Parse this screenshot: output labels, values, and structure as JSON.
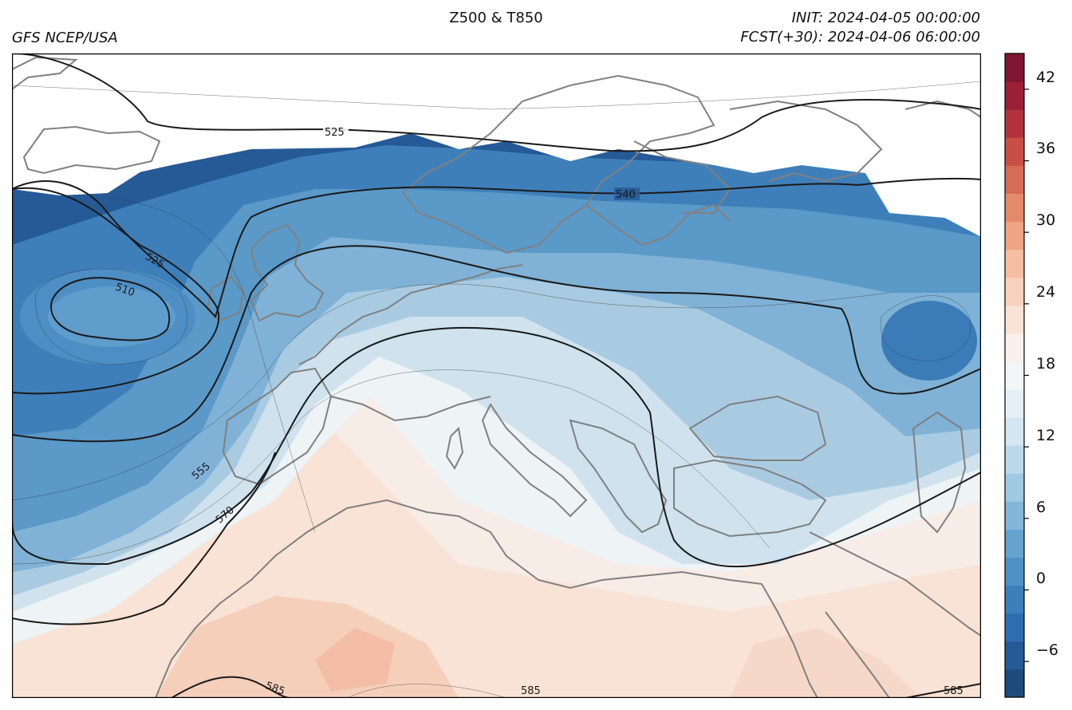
{
  "header": {
    "title": "Z500 & T850",
    "source": "GFS NCEP/USA",
    "init": "INIT: 2024-04-05 00:00:00",
    "forecast": "FCST(+30): 2024-04-06 06:00:00"
  },
  "map": {
    "type": "contourf+contour",
    "variable_filled": "T850",
    "variable_lines": "Z500",
    "region": "North Atlantic, Europe, Mediterranean, North Africa",
    "contour_labels": [
      "525",
      "540",
      "525",
      "510",
      "555",
      "570",
      "585",
      "585",
      "585"
    ],
    "colors": {
      "land_outline": "#808080",
      "contour_line": "#1a1a1a",
      "cold": "#2166ac",
      "warm": "#f4a582"
    }
  },
  "colorbar": {
    "vmin": -9,
    "vmax": 45,
    "step": 3,
    "tick_labels": [
      "42",
      "36",
      "30",
      "24",
      "18",
      "12",
      "6",
      "0",
      "−6"
    ],
    "colors": [
      "#1f4a7c",
      "#255a96",
      "#2e6db0",
      "#3b7fbb",
      "#4d91c6",
      "#65a3cf",
      "#83b7d9",
      "#a1c9e3",
      "#bcd9ea",
      "#d4e6f1",
      "#e6eff5",
      "#f3f5f7",
      "#f9efeb",
      "#fae2d6",
      "#f9d1bc",
      "#f6bea2",
      "#efa584",
      "#e58a6a",
      "#d76b55",
      "#c74f46",
      "#b2313c",
      "#9b1f37",
      "#7f1530"
    ]
  }
}
